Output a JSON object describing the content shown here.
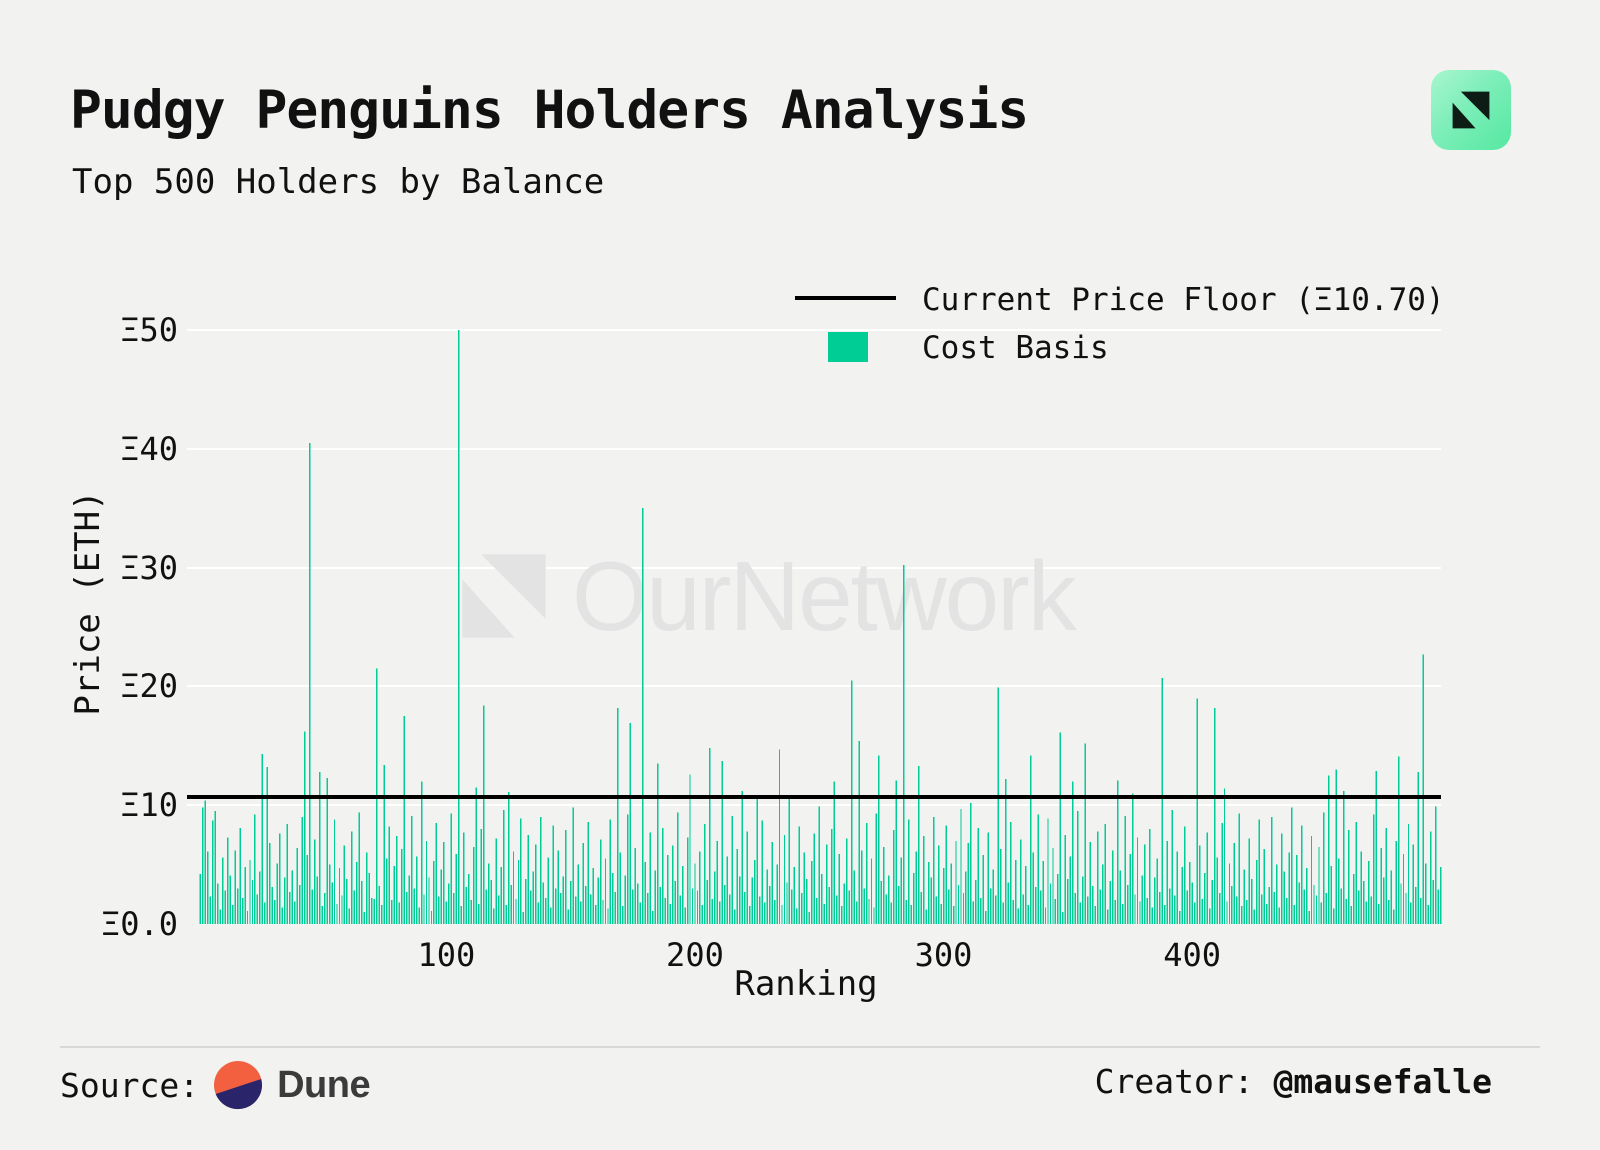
{
  "header": {
    "title": "Pudgy Penguins Holders Analysis",
    "subtitle": "Top 500 Holders by Balance"
  },
  "colors": {
    "accent_green": "#00cc96",
    "background": "#f2f2f1",
    "floor_line": "#000000",
    "watermark_gray": "#e3e3e3",
    "icon_gradient_start": "#a9f6cd",
    "icon_gradient_end": "#55e8a2",
    "dune_orange": "#f2603f",
    "dune_navy": "#2a246a"
  },
  "legend": {
    "items": [
      {
        "label": "Current Price Floor (Ξ10.70)",
        "type": "line",
        "color": "#000000"
      },
      {
        "label": "Cost Basis",
        "type": "swatch",
        "color": "#00cc96"
      }
    ]
  },
  "watermark": {
    "text": "OurNetwork"
  },
  "footer": {
    "source_label": "Source:",
    "source_name": "Dune",
    "creator_label": "Creator: ",
    "creator_handle": "@mausefalle"
  },
  "chart_data": {
    "type": "bar",
    "title": "Pudgy Penguins Holders Analysis",
    "subtitle": "Top 500 Holders by Balance",
    "xlabel": "Ranking",
    "ylabel": "Price (ETH)",
    "xlim": [
      1,
      500
    ],
    "ylim": [
      0,
      50
    ],
    "grid": "horizontal-white-lines",
    "legend_position": "top-right-inside",
    "x_ticks": [
      {
        "value": 100,
        "label": "100"
      },
      {
        "value": 200,
        "label": "200"
      },
      {
        "value": 300,
        "label": "300"
      },
      {
        "value": 400,
        "label": "400"
      }
    ],
    "y_ticks": [
      {
        "value": 0,
        "label": "Ξ0.0"
      },
      {
        "value": 10,
        "label": "Ξ10"
      },
      {
        "value": 20,
        "label": "Ξ20"
      },
      {
        "value": 30,
        "label": "Ξ30"
      },
      {
        "value": 40,
        "label": "Ξ40"
      },
      {
        "value": 50,
        "label": "Ξ50"
      }
    ],
    "reference_line": {
      "name": "Current Price Floor",
      "value": 10.7,
      "color": "#000000"
    },
    "series": [
      {
        "name": "Cost Basis",
        "color": "#00cc96",
        "x_is_rank_1_to_500": true,
        "values": [
          4.2,
          9.8,
          10.4,
          6.1,
          2.3,
          8.7,
          9.5,
          3.4,
          1.2,
          5.6,
          2.8,
          7.3,
          4.1,
          1.6,
          6.2,
          3.0,
          8.1,
          2.2,
          4.8,
          1.1,
          5.4,
          3.7,
          9.2,
          2.5,
          4.4,
          14.3,
          1.8,
          13.2,
          6.8,
          3.1,
          2.0,
          5.1,
          7.6,
          1.4,
          3.9,
          8.4,
          2.7,
          4.5,
          1.9,
          6.4,
          3.3,
          9.0,
          16.2,
          5.8,
          40.5,
          2.9,
          7.1,
          4.0,
          12.8,
          1.5,
          2.6,
          12.3,
          5.0,
          3.5,
          8.8,
          1.7,
          4.7,
          2.4,
          6.6,
          3.8,
          1.3,
          7.8,
          2.8,
          5.2,
          9.4,
          3.6,
          1.0,
          6.0,
          4.3,
          2.2,
          2.1,
          21.5,
          3.2,
          1.6,
          13.4,
          5.5,
          8.2,
          2.0,
          4.9,
          7.4,
          1.8,
          6.3,
          17.5,
          2.7,
          4.1,
          9.1,
          3.0,
          5.7,
          1.4,
          12.0,
          2.5,
          7.0,
          3.9,
          1.1,
          5.3,
          8.5,
          2.3,
          4.6,
          6.9,
          1.9,
          3.4,
          9.3,
          2.6,
          5.9,
          50.0,
          1.5,
          7.7,
          3.1,
          4.2,
          2.0,
          6.5,
          11.5,
          1.7,
          8.0,
          18.4,
          2.9,
          5.1,
          3.7,
          1.3,
          7.2,
          2.4,
          4.8,
          9.6,
          1.6,
          11.1,
          3.3,
          6.1,
          2.1,
          5.4,
          8.9,
          1.0,
          3.8,
          7.5,
          2.8,
          4.4,
          6.7,
          1.8,
          9.0,
          3.5,
          2.2,
          5.6,
          1.4,
          8.3,
          3.0,
          6.2,
          2.6,
          4.0,
          7.9,
          1.2,
          3.6,
          9.8,
          2.3,
          5.0,
          1.9,
          6.8,
          3.2,
          8.6,
          2.5,
          4.7,
          1.6,
          3.9,
          7.1,
          2.0,
          5.5,
          1.3,
          8.8,
          4.3,
          2.7,
          18.2,
          6.0,
          1.5,
          4.1,
          9.2,
          16.9,
          2.9,
          6.4,
          3.4,
          1.8,
          35.0,
          5.2,
          2.6,
          7.7,
          1.1,
          4.5,
          13.5,
          3.1,
          8.1,
          2.2,
          5.8,
          1.7,
          6.6,
          3.6,
          9.4,
          2.4,
          4.9,
          1.4,
          7.3,
          12.6,
          3.0,
          5.1,
          2.8,
          6.1,
          1.6,
          8.4,
          3.7,
          14.8,
          2.1,
          4.4,
          7.0,
          1.9,
          13.7,
          3.3,
          5.7,
          2.5,
          9.1,
          1.2,
          6.3,
          4.0,
          11.2,
          2.7,
          7.8,
          1.5,
          3.9,
          5.4,
          10.6,
          2.3,
          8.7,
          1.8,
          4.6,
          3.2,
          6.9,
          2.0,
          5.0,
          14.7,
          1.6,
          7.5,
          3.5,
          10.8,
          2.9,
          4.8,
          1.3,
          8.2,
          2.6,
          6.0,
          3.8,
          1.0,
          5.3,
          7.6,
          2.2,
          9.9,
          4.2,
          1.7,
          6.7,
          3.1,
          8.0,
          12.0,
          2.4,
          5.9,
          1.5,
          3.4,
          7.2,
          2.8,
          20.5,
          4.5,
          1.9,
          15.4,
          6.2,
          3.0,
          8.5,
          2.1,
          5.5,
          1.4,
          9.3,
          14.2,
          3.6,
          6.5,
          2.5,
          4.1,
          1.8,
          7.9,
          12.1,
          3.2,
          5.6,
          30.2,
          2.0,
          8.8,
          1.6,
          4.3,
          6.1,
          13.3,
          2.7,
          7.4,
          1.2,
          5.2,
          3.9,
          9.0,
          2.3,
          6.6,
          1.7,
          4.7,
          8.3,
          2.9,
          5.1,
          1.5,
          7.0,
          3.3,
          9.7,
          2.6,
          4.4,
          6.8,
          10.2,
          1.9,
          3.7,
          8.1,
          2.2,
          5.8,
          1.1,
          7.7,
          3.0,
          4.6,
          2.4,
          19.9,
          6.3,
          1.8,
          12.2,
          3.5,
          8.6,
          2.0,
          5.4,
          1.3,
          7.1,
          2.5,
          4.9,
          1.6,
          14.2,
          6.0,
          3.1,
          9.2,
          2.8,
          5.3,
          1.4,
          8.9,
          3.4,
          6.4,
          2.1,
          4.2,
          16.1,
          1.0,
          7.5,
          3.8,
          5.7,
          12.0,
          2.6,
          9.5,
          1.8,
          4.0,
          15.2,
          2.3,
          6.9,
          3.2,
          1.5,
          7.8,
          2.9,
          5.0,
          8.4,
          1.2,
          3.6,
          6.2,
          2.0,
          12.1,
          4.5,
          1.7,
          9.1,
          3.3,
          5.9,
          11.0,
          2.5,
          7.3,
          1.9,
          4.1,
          6.7,
          2.2,
          8.0,
          1.4,
          3.9,
          5.5,
          2.7,
          20.7,
          1.6,
          7.0,
          3.0,
          9.6,
          2.4,
          6.1,
          1.1,
          4.8,
          8.2,
          2.8,
          5.2,
          3.5,
          1.8,
          19.0,
          6.6,
          2.1,
          4.3,
          7.7,
          1.3,
          3.7,
          18.2,
          5.6,
          2.6,
          8.5,
          11.4,
          1.9,
          5.1,
          3.2,
          6.8,
          2.3,
          9.3,
          1.5,
          4.6,
          2.0,
          7.2,
          3.8,
          1.2,
          5.4,
          8.8,
          2.5,
          6.3,
          1.7,
          3.1,
          9.0,
          2.7,
          5.0,
          1.4,
          7.6,
          4.4,
          2.2,
          6.0,
          9.8,
          1.6,
          5.8,
          3.5,
          8.3,
          2.9,
          4.7,
          1.1,
          7.4,
          3.3,
          2.4,
          6.5,
          1.8,
          9.4,
          2.6,
          12.5,
          4.9,
          1.3,
          13.0,
          5.5,
          3.0,
          11.2,
          2.1,
          7.9,
          1.5,
          4.2,
          8.6,
          2.8,
          6.1,
          3.6,
          1.9,
          5.3,
          2.3,
          9.2,
          12.9,
          1.7,
          6.4,
          3.9,
          8.1,
          2.0,
          4.5,
          1.2,
          7.0,
          14.1,
          3.4,
          5.9,
          2.6,
          8.4,
          1.8,
          6.7,
          3.1,
          12.8,
          2.2,
          22.7,
          5.1,
          1.6,
          7.8,
          3.7,
          9.9,
          2.9,
          4.8
        ]
      }
    ]
  }
}
